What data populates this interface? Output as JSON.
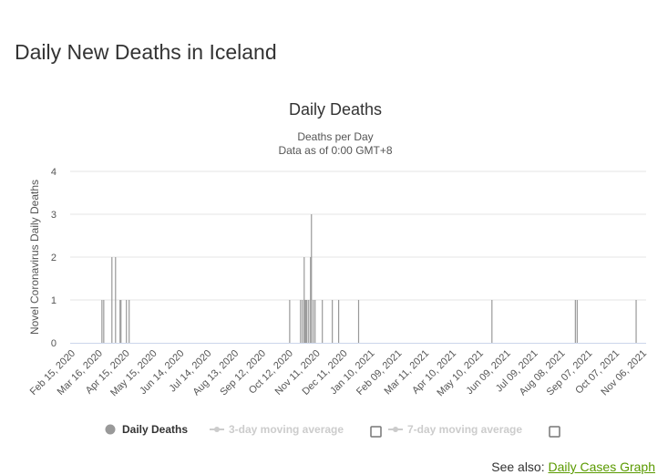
{
  "page_title": "Daily New Deaths in Iceland",
  "see_also": {
    "label": "See also:",
    "link": "Daily Cases Graph"
  },
  "chart_data": {
    "type": "bar",
    "title": "Daily Deaths",
    "subtitle": [
      "Deaths per Day",
      "Data as of 0:00 GMT+8"
    ],
    "ylabel": "Novel Coronavirus Daily Deaths",
    "ylim": [
      0,
      4
    ],
    "yticks": [
      "0",
      "1",
      "2",
      "3",
      "4"
    ],
    "xrange": [
      "2020-02-15",
      "2021-11-06"
    ],
    "xticks": [
      "Feb 15, 2020",
      "Mar 16, 2020",
      "Apr 15, 2020",
      "May 15, 2020",
      "Jun 14, 2020",
      "Jul 14, 2020",
      "Aug 13, 2020",
      "Sep 12, 2020",
      "Oct 12, 2020",
      "Nov 11, 2020",
      "Dec 11, 2020",
      "Jan 10, 2021",
      "Feb 09, 2021",
      "Mar 11, 2021",
      "Apr 10, 2021",
      "May 10, 2021",
      "Jun 09, 2021",
      "Jul 09, 2021",
      "Aug 08, 2021",
      "Sep 07, 2021",
      "Oct 07, 2021",
      "Nov 06, 2021"
    ],
    "series": [
      {
        "name": "Daily Deaths",
        "color": "#999999",
        "points": [
          [
            "2020-03-18",
            1
          ],
          [
            "2020-03-20",
            1
          ],
          [
            "2020-03-29",
            2
          ],
          [
            "2020-04-02",
            2
          ],
          [
            "2020-04-07",
            1
          ],
          [
            "2020-04-08",
            1
          ],
          [
            "2020-04-14",
            1
          ],
          [
            "2020-04-17",
            1
          ],
          [
            "2020-10-11",
            1
          ],
          [
            "2020-10-23",
            1
          ],
          [
            "2020-10-25",
            1
          ],
          [
            "2020-10-27",
            2
          ],
          [
            "2020-10-28",
            1
          ],
          [
            "2020-10-29",
            1
          ],
          [
            "2020-10-30",
            1
          ],
          [
            "2020-11-01",
            1
          ],
          [
            "2020-11-03",
            2
          ],
          [
            "2020-11-04",
            3
          ],
          [
            "2020-11-06",
            1
          ],
          [
            "2020-11-08",
            1
          ],
          [
            "2020-11-16",
            1
          ],
          [
            "2020-11-27",
            1
          ],
          [
            "2020-12-04",
            1
          ],
          [
            "2020-12-26",
            1
          ],
          [
            "2021-05-22",
            1
          ],
          [
            "2021-08-22",
            1
          ],
          [
            "2021-08-24",
            1
          ],
          [
            "2021-10-28",
            1
          ]
        ]
      }
    ],
    "legend": [
      {
        "name": "Daily Deaths",
        "enabled": true
      },
      {
        "name": "3-day moving average",
        "enabled": false
      },
      {
        "name": "7-day moving average",
        "enabled": false
      }
    ],
    "legend_position": "bottom"
  }
}
